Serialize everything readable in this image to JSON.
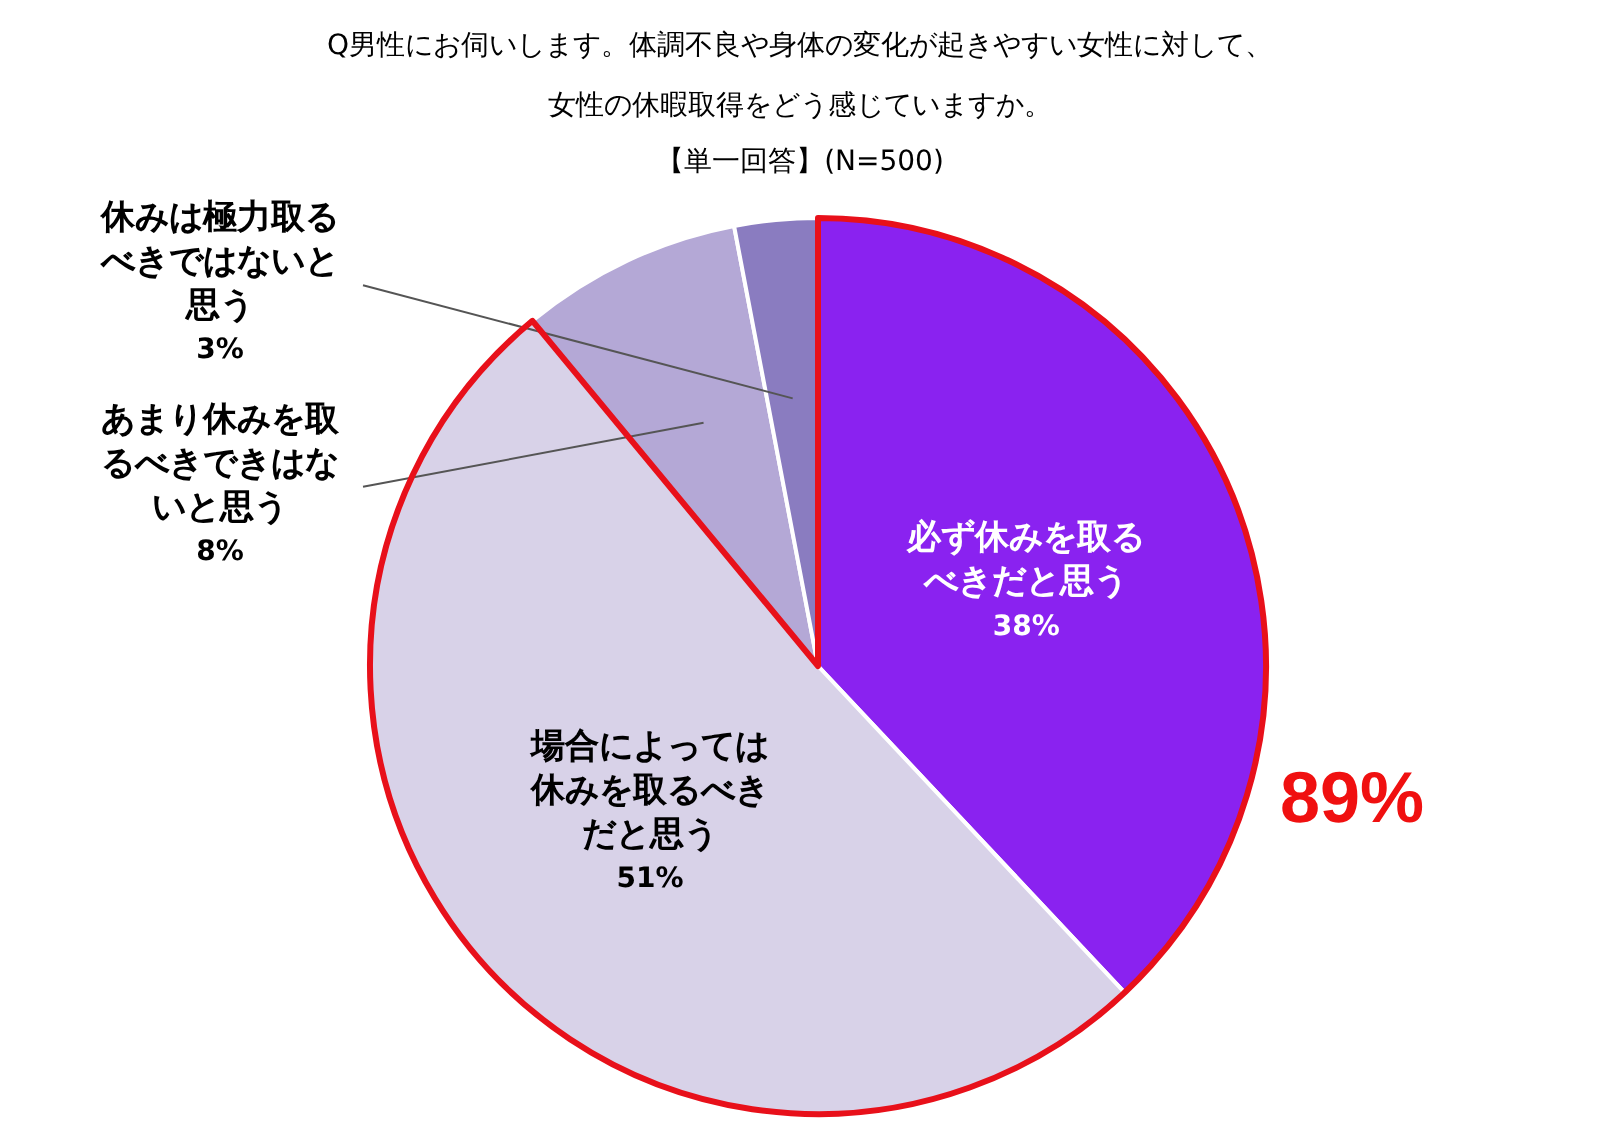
{
  "chart_data": {
    "type": "pie",
    "title": "Q男性にお伺いします。体調不良や身体の変化が起きやすい女性に対して、女性の休暇取得をどう感じていますか。",
    "subtitle": "【単一回答】(N=500)",
    "categories": [
      "必ず休みを取るべきだと思う",
      "場合によっては休みを取るべきだと思う",
      "あまり休みを取るべきできはないと思う",
      "休みは極力取るべきではないと思う"
    ],
    "values": [
      38,
      51,
      8,
      3
    ],
    "value_labels": [
      "38%",
      "51%",
      "8%",
      "3%"
    ],
    "colors": [
      "#8a22f0",
      "#d8d2e8",
      "#b4a8d6",
      "#8a7cc0"
    ],
    "annotations": [
      "89%"
    ],
    "legend": false
  }
}
